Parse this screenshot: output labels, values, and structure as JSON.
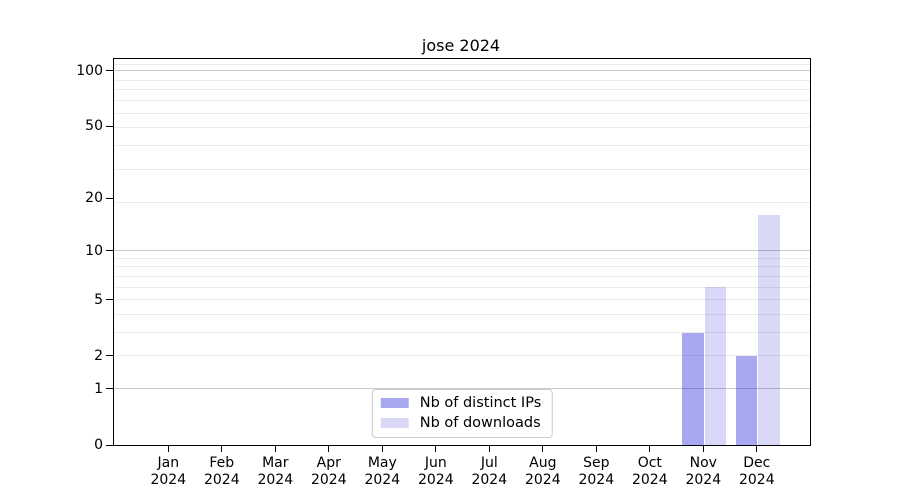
{
  "chart_data": {
    "type": "bar",
    "title": "jose 2024",
    "categories": [
      "Jan",
      "Feb",
      "Mar",
      "Apr",
      "May",
      "Jun",
      "Jul",
      "Aug",
      "Sep",
      "Oct",
      "Nov",
      "Dec"
    ],
    "year_label": "2024",
    "series": [
      {
        "name": "Nb of distinct IPs",
        "color": "rgba(0,0,210,0.34)",
        "values": [
          0,
          0,
          0,
          0,
          0,
          0,
          0,
          0,
          0,
          0,
          3,
          2
        ]
      },
      {
        "name": "Nb of downloads",
        "color": "rgba(0,0,200,0.15)",
        "values": [
          0,
          0,
          0,
          0,
          0,
          0,
          0,
          0,
          0,
          0,
          6,
          16
        ]
      }
    ],
    "xlabel": "",
    "ylabel": "",
    "yticks": [
      100,
      50,
      20,
      10,
      5,
      2,
      1,
      0
    ],
    "yscale": "log1p",
    "ylim": [
      0,
      116
    ],
    "grid": {
      "on": true,
      "major_at_values": [
        1,
        10,
        100
      ],
      "minor_at_log_steps": [
        3,
        4,
        5,
        6,
        7,
        8,
        9,
        10,
        20,
        30,
        40,
        50,
        60,
        70,
        80,
        90,
        110
      ],
      "minor_color": "#ebebeb",
      "major_color": "#c9c9c9"
    },
    "legend_position": "lower center",
    "text_color": "#000000",
    "spine_color": "#000000"
  }
}
